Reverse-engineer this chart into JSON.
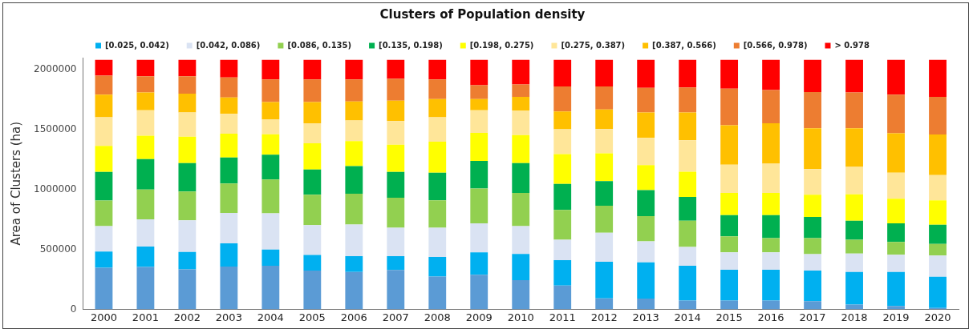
{
  "chart_data": {
    "type": "bar",
    "title": "Clusters of Population density",
    "ylabel": "Area of Clusters (ha)",
    "stacked": true,
    "legend": "top",
    "grid": false,
    "categories": [
      "2000",
      "2001",
      "2002",
      "2003",
      "2004",
      "2005",
      "2006",
      "2007",
      "2008",
      "2009",
      "2010",
      "2011",
      "2012",
      "2013",
      "2014",
      "2015",
      "2016",
      "2017",
      "2018",
      "2019",
      "2020"
    ],
    "ylim": [
      0,
      2100000
    ],
    "yticks": [
      0,
      500000,
      1000000,
      1500000,
      2000000
    ],
    "series": [
      {
        "color": "#5b9bd5",
        "values": [
          346000,
          353000,
          334000,
          357000,
          364000,
          323000,
          312000,
          328000,
          273000,
          289000,
          243000,
          198000,
          91000,
          89000,
          73000,
          73000,
          73000,
          68000,
          39000,
          27000,
          11000
        ]
      },
      {
        "name": "[0.025, 0.042)",
        "color": "#00b0f0",
        "values": [
          136000,
          170000,
          144000,
          194000,
          134000,
          130000,
          132000,
          116000,
          164000,
          187000,
          219000,
          212000,
          305000,
          302000,
          291000,
          257000,
          257000,
          255000,
          273000,
          285000,
          260000
        ]
      },
      {
        "name": "[0.042, 0.086)",
        "color": "#dae3f3",
        "values": [
          212000,
          228000,
          264000,
          254000,
          303000,
          250000,
          264000,
          236000,
          243000,
          241000,
          232000,
          170000,
          243000,
          176000,
          157000,
          146000,
          146000,
          137000,
          154000,
          143000,
          177000
        ]
      },
      {
        "name": "[0.086, 0.135)",
        "color": "#92d050",
        "values": [
          214000,
          248000,
          241000,
          244000,
          282000,
          253000,
          257000,
          251000,
          230000,
          291000,
          278000,
          250000,
          226000,
          211000,
          218000,
          132000,
          118000,
          134000,
          114000,
          107000,
          98000
        ]
      },
      {
        "name": "[0.135, 0.198)",
        "color": "#00b050",
        "values": [
          239000,
          255000,
          237000,
          218000,
          207000,
          211000,
          230000,
          216000,
          230000,
          230000,
          248000,
          217000,
          204000,
          216000,
          198000,
          177000,
          191000,
          177000,
          159000,
          155000,
          159000
        ]
      },
      {
        "name": "[0.198, 0.275)",
        "color": "#ffff00",
        "values": [
          216000,
          195000,
          220000,
          198000,
          171000,
          219000,
          209000,
          227000,
          259000,
          234000,
          234000,
          248000,
          232000,
          210000,
          212000,
          187000,
          187000,
          185000,
          221000,
          205000,
          205000
        ]
      },
      {
        "name": "[0.275, 0.387)",
        "color": "#ffe699",
        "values": [
          239000,
          212000,
          203000,
          166000,
          125000,
          166000,
          171000,
          196000,
          203000,
          189000,
          205000,
          207000,
          203000,
          227000,
          262000,
          234000,
          243000,
          214000,
          228000,
          218000,
          209000
        ]
      },
      {
        "name": "[0.387, 0.566)",
        "color": "#ffc000",
        "values": [
          189000,
          148000,
          157000,
          137000,
          143000,
          177000,
          159000,
          171000,
          152000,
          93000,
          113000,
          148000,
          164000,
          212000,
          232000,
          330000,
          337000,
          341000,
          323000,
          328000,
          339000
        ]
      },
      {
        "name": "[0.566, 0.978)",
        "color": "#ed7d31",
        "values": [
          159000,
          136000,
          145000,
          166000,
          189000,
          189000,
          184000,
          182000,
          164000,
          116000,
          105000,
          209000,
          191000,
          205000,
          209000,
          305000,
          277000,
          302000,
          298000,
          323000,
          314000
        ]
      },
      {
        "name": "> 0.978",
        "color": "#ff0000",
        "values": [
          132000,
          137000,
          137000,
          148000,
          164000,
          164000,
          164000,
          159000,
          164000,
          212000,
          205000,
          223000,
          223000,
          234000,
          230000,
          241000,
          253000,
          269000,
          273000,
          291000,
          310000
        ]
      }
    ]
  }
}
